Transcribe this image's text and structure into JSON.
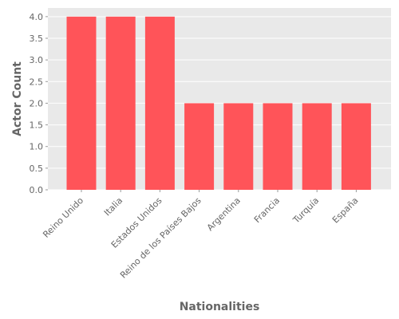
{
  "chart_data": {
    "type": "bar",
    "title": "",
    "xlabel": "Nationalities",
    "ylabel": "Actor Count",
    "categories": [
      "Reino Unido",
      "Italia",
      "Estados Unidos",
      "Reino de los Países Bajos",
      "Argentina",
      "Francia",
      "Turquía",
      "España"
    ],
    "values": [
      4,
      4,
      4,
      2,
      2,
      2,
      2,
      2
    ],
    "ylim": [
      0,
      4.2
    ],
    "yticks": [
      "0.0",
      "0.5",
      "1.0",
      "1.5",
      "2.0",
      "2.5",
      "3.0",
      "3.5",
      "4.0"
    ],
    "grid": true,
    "legend": "none",
    "colors": {
      "bar": "#ff5459",
      "plot_background": "#e9e9e9",
      "grid": "#ffffff",
      "text": "#666666"
    }
  }
}
